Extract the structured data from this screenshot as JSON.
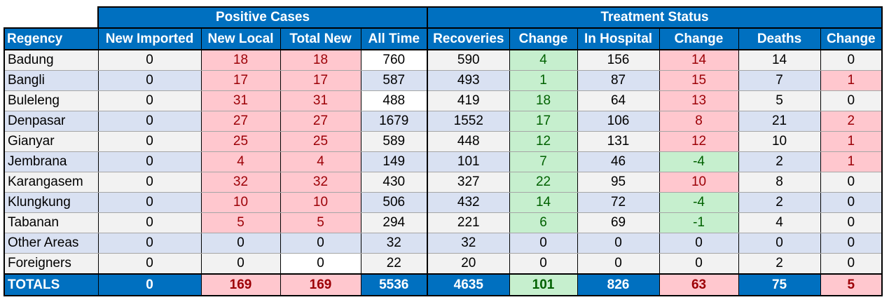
{
  "colors": {
    "header_blue": "#0070c0",
    "row_gray": "#f2f2f2",
    "row_blue": "#d9e1f2",
    "red_fill": "#ffc7ce",
    "red_text": "#9c0006",
    "green_fill": "#c6efce",
    "green_text": "#006100"
  },
  "groups": {
    "positive_cases": "Positive Cases",
    "treatment_status": "Treatment Status"
  },
  "headers": [
    "Regency",
    "New Imported",
    "New Local",
    "Total New",
    "All Time",
    "Recoveries",
    "Change",
    "In Hospital",
    "Change",
    "Deaths",
    "Change"
  ],
  "rows": [
    {
      "regency": "Badung",
      "new_imported": "0",
      "new_local": "18",
      "total_new": "18",
      "all_time": "760",
      "recoveries": "590",
      "rec_change": "4",
      "in_hospital": "156",
      "hosp_change": "14",
      "deaths": "14",
      "death_change": "0"
    },
    {
      "regency": "Bangli",
      "new_imported": "0",
      "new_local": "17",
      "total_new": "17",
      "all_time": "587",
      "recoveries": "493",
      "rec_change": "1",
      "in_hospital": "87",
      "hosp_change": "15",
      "deaths": "7",
      "death_change": "1"
    },
    {
      "regency": "Buleleng",
      "new_imported": "0",
      "new_local": "31",
      "total_new": "31",
      "all_time": "488",
      "recoveries": "419",
      "rec_change": "18",
      "in_hospital": "64",
      "hosp_change": "13",
      "deaths": "5",
      "death_change": "0"
    },
    {
      "regency": "Denpasar",
      "new_imported": "0",
      "new_local": "27",
      "total_new": "27",
      "all_time": "1679",
      "recoveries": "1552",
      "rec_change": "17",
      "in_hospital": "106",
      "hosp_change": "8",
      "deaths": "21",
      "death_change": "2"
    },
    {
      "regency": "Gianyar",
      "new_imported": "0",
      "new_local": "25",
      "total_new": "25",
      "all_time": "589",
      "recoveries": "448",
      "rec_change": "12",
      "in_hospital": "131",
      "hosp_change": "12",
      "deaths": "10",
      "death_change": "1"
    },
    {
      "regency": "Jembrana",
      "new_imported": "0",
      "new_local": "4",
      "total_new": "4",
      "all_time": "149",
      "recoveries": "101",
      "rec_change": "7",
      "in_hospital": "46",
      "hosp_change": "-4",
      "deaths": "2",
      "death_change": "1"
    },
    {
      "regency": "Karangasem",
      "new_imported": "0",
      "new_local": "32",
      "total_new": "32",
      "all_time": "430",
      "recoveries": "327",
      "rec_change": "22",
      "in_hospital": "95",
      "hosp_change": "10",
      "deaths": "8",
      "death_change": "0"
    },
    {
      "regency": "Klungkung",
      "new_imported": "0",
      "new_local": "10",
      "total_new": "10",
      "all_time": "506",
      "recoveries": "432",
      "rec_change": "14",
      "in_hospital": "72",
      "hosp_change": "-4",
      "deaths": "2",
      "death_change": "0"
    },
    {
      "regency": "Tabanan",
      "new_imported": "0",
      "new_local": "5",
      "total_new": "5",
      "all_time": "294",
      "recoveries": "221",
      "rec_change": "6",
      "in_hospital": "69",
      "hosp_change": "-1",
      "deaths": "4",
      "death_change": "0"
    },
    {
      "regency": "Other Areas",
      "new_imported": "0",
      "new_local": "0",
      "total_new": "0",
      "all_time": "32",
      "recoveries": "32",
      "rec_change": "0",
      "in_hospital": "0",
      "hosp_change": "0",
      "deaths": "0",
      "death_change": "0"
    },
    {
      "regency": "Foreigners",
      "new_imported": "0",
      "new_local": "0",
      "total_new": "0",
      "all_time": "22",
      "recoveries": "20",
      "rec_change": "0",
      "in_hospital": "0",
      "hosp_change": "0",
      "deaths": "2",
      "death_change": "0"
    }
  ],
  "totals": {
    "label": "TOTALS",
    "new_imported": "0",
    "new_local": "169",
    "total_new": "169",
    "all_time": "5536",
    "recoveries": "4635",
    "rec_change": "101",
    "in_hospital": "826",
    "hosp_change": "63",
    "deaths": "75",
    "death_change": "5"
  }
}
